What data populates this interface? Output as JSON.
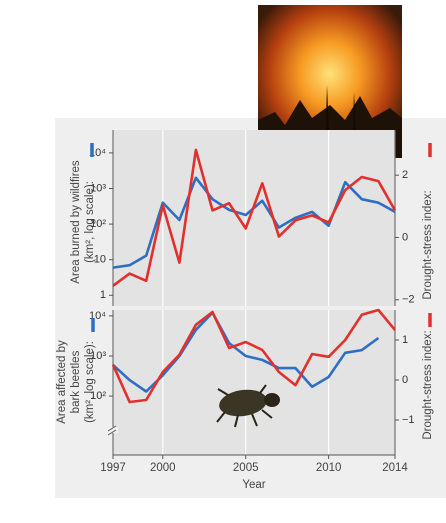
{
  "chart_data": [
    {
      "type": "line",
      "ylabel": [
        "Area burned by wildfires",
        "(km², log scale):"
      ],
      "y2label": "Drought-stress index:",
      "x": [
        1997,
        1998,
        1999,
        2000,
        2001,
        2002,
        2003,
        2004,
        2005,
        2006,
        2007,
        2008,
        2009,
        2010,
        2011,
        2012,
        2013,
        2014
      ],
      "series": [
        {
          "color": "#2e6fc4",
          "values": [
            6,
            7,
            13,
            400,
            130,
            2000,
            500,
            250,
            180,
            450,
            80,
            150,
            220,
            90,
            1500,
            500,
            400,
            220
          ]
        },
        {
          "color": "#e2312d",
          "axis": "y2",
          "values": [
            -1.55,
            -1.16,
            -1.39,
            1.03,
            -0.81,
            2.81,
            0.87,
            1.1,
            0.29,
            1.74,
            0.03,
            0.55,
            0.71,
            0.48,
            1.52,
            1.94,
            1.81,
            0.87
          ]
        }
      ],
      "xlim": [
        1997,
        2014
      ],
      "ylog": true,
      "ylim": [
        0.5,
        44000
      ],
      "yticks": [
        1,
        10,
        {
          "value": 100,
          "label": "10²"
        },
        {
          "value": 1000,
          "label": "10³"
        },
        {
          "value": 10000,
          "label": "10⁴"
        }
      ],
      "y2lim": [
        -2.2,
        3.45
      ],
      "y2ticks": [
        2,
        0,
        {
          "value": -2,
          "label": "−2"
        }
      ],
      "xgrid": true
    },
    {
      "type": "line",
      "ylabel": [
        "Area affected by",
        "bark beetles",
        "(km², log scale):"
      ],
      "y2label": "Drought-stress index:",
      "xlabel": "Year",
      "x": [
        1997,
        1998,
        1999,
        2000,
        2001,
        2002,
        2003,
        2004,
        2005,
        2006,
        2007,
        2008,
        2009,
        2010,
        2011,
        2012,
        2013,
        2014
      ],
      "series": [
        {
          "color": "#2e6fc4",
          "values": [
            600,
            250,
            130,
            330,
            1000,
            4500,
            12000,
            2100,
            1000,
            800,
            500,
            500,
            170,
            300,
            1200,
            1400,
            2800,
            null
          ]
        },
        {
          "color": "#e2312d",
          "axis": "y2",
          "values": [
            0.38,
            -0.55,
            -0.5,
            0.2,
            0.63,
            1.38,
            1.7,
            0.8,
            0.95,
            0.75,
            0.2,
            -0.13,
            0.65,
            0.58,
            1.0,
            1.63,
            1.75,
            1.25
          ]
        }
      ],
      "xlim": [
        1997,
        2014
      ],
      "xticks": [
        1997,
        2000,
        2005,
        2010,
        2014
      ],
      "ylog": true,
      "ylim": [
        3.4,
        14000
      ],
      "yticks": [
        {
          "value": 100,
          "label": "10²"
        },
        {
          "value": 1000,
          "label": "10³"
        },
        {
          "value": 10000,
          "label": "10⁴"
        }
      ],
      "y2lim": [
        -1.875,
        1.75
      ],
      "y2ticks": [
        1,
        0,
        {
          "value": -1,
          "label": "−1"
        }
      ],
      "xgrid": true
    }
  ]
}
